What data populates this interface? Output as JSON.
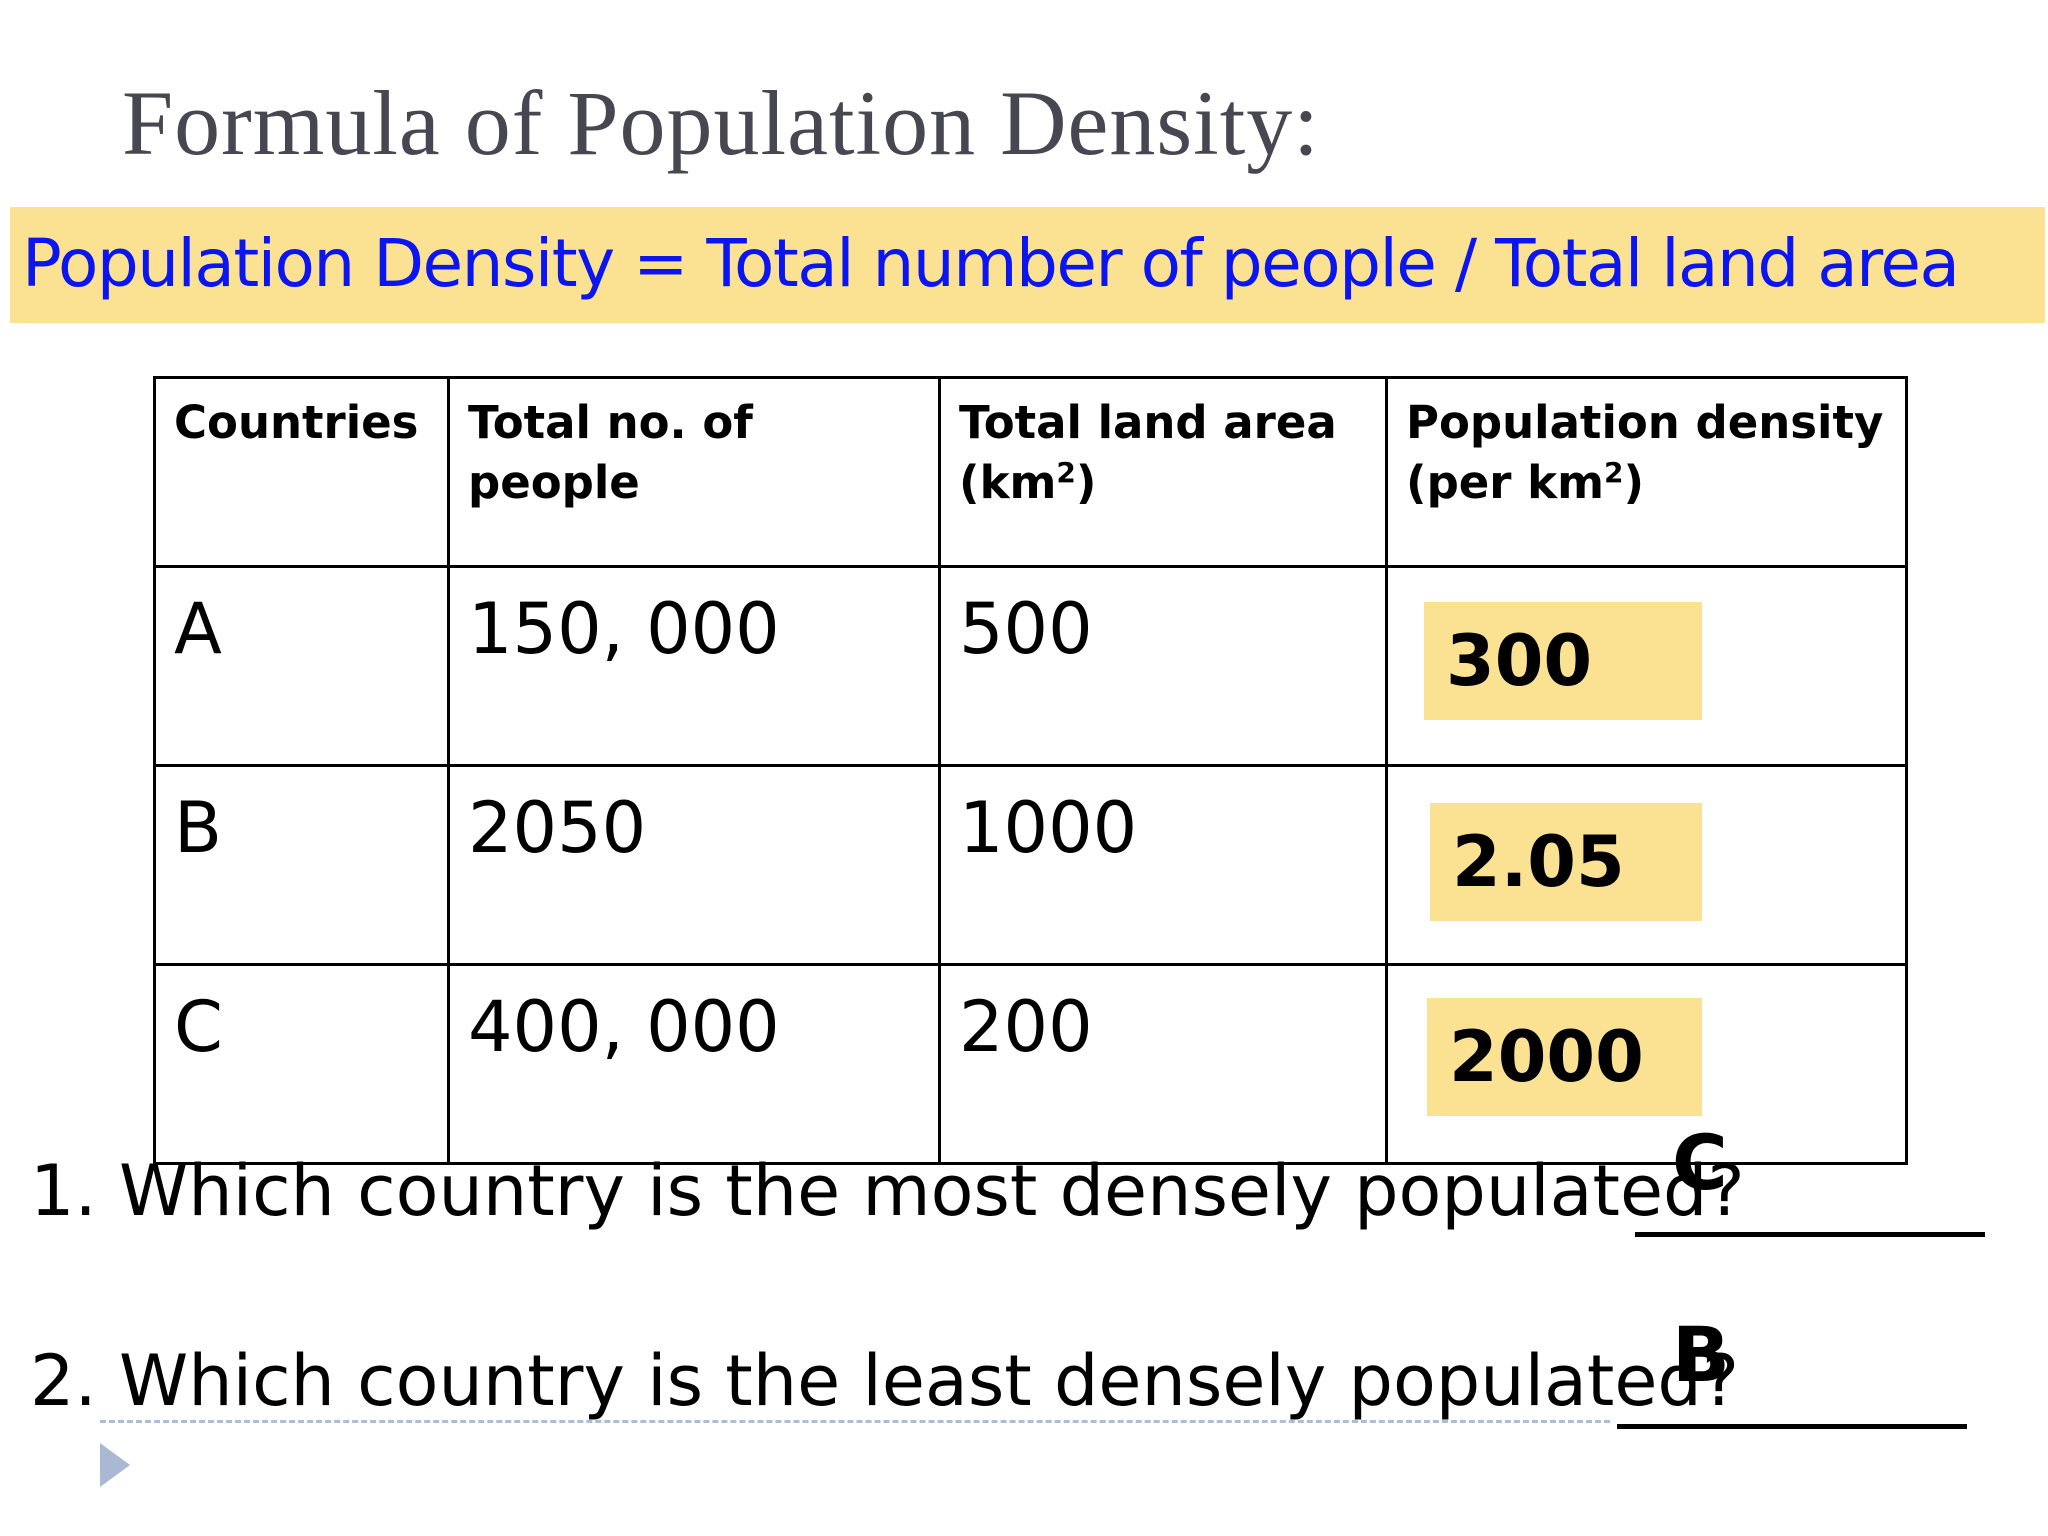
{
  "slide": {
    "title": "Formula of Population Density:",
    "formula": "Population Density = Total number of people / Total land area"
  },
  "table": {
    "headers": {
      "countries": "Countries",
      "people": "Total no. of people",
      "area_line1": "Total land area",
      "area_unit_open": "(km",
      "area_unit_sup": "2",
      "area_unit_close": ")",
      "density_line1": "Population density",
      "density_unit_open": "(per km",
      "density_unit_sup": "2",
      "density_unit_close": ")"
    },
    "rows": [
      {
        "country": "A",
        "people": "150, 000",
        "area": "500",
        "density": "300"
      },
      {
        "country": "B",
        "people": "2050",
        "area": "1000",
        "density": "2.05"
      },
      {
        "country": "C",
        "people": "400, 000",
        "area": "200",
        "density": "2000"
      }
    ]
  },
  "questions": [
    {
      "text": "1. Which country is the most densely populated?",
      "answer": "C"
    },
    {
      "text": "2. Which country is the least densely populated?",
      "answer": "B"
    }
  ],
  "colors": {
    "highlight": "#fbe293",
    "formula_text": "#0a15ef",
    "title_text": "#474751",
    "nav_arrow": "#a9b8d3"
  },
  "icons": {
    "nav": "play-arrow-icon"
  }
}
